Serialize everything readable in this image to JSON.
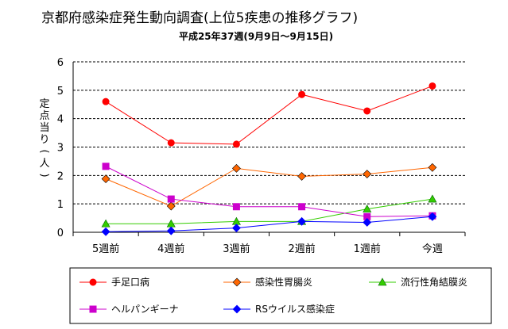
{
  "chart_data": {
    "type": "line",
    "title": "京都府感染症発生動向調査(上位5疾患の推移グラフ)",
    "subtitle": "平成25年37週(9月9日～9月15日)",
    "ylabel": "定点当り(人)",
    "xlabel": "",
    "ylim": [
      0,
      6
    ],
    "yticks": [
      "0",
      "1",
      "2",
      "3",
      "4",
      "5",
      "6"
    ],
    "grid": true,
    "legend_position": "bottom",
    "categories": [
      "5週前",
      "4週前",
      "3週前",
      "2週前",
      "1週前",
      "今週"
    ],
    "series": [
      {
        "name": "手足口病",
        "color": "#ff0000",
        "marker": "circle",
        "values": [
          4.6,
          3.15,
          3.1,
          4.85,
          4.27,
          5.15
        ]
      },
      {
        "name": "感染性胃腸炎",
        "color": "#ff6600",
        "marker": "diamond",
        "values": [
          1.88,
          0.92,
          2.25,
          1.97,
          2.05,
          2.28
        ]
      },
      {
        "name": "流行性角結膜炎",
        "color": "#33cc00",
        "marker": "triangle",
        "values": [
          0.3,
          0.3,
          0.38,
          0.38,
          0.82,
          1.17
        ]
      },
      {
        "name": "ヘルパンギーナ",
        "color": "#cc00cc",
        "marker": "square",
        "values": [
          2.32,
          1.17,
          0.9,
          0.9,
          0.55,
          0.58
        ]
      },
      {
        "name": "RSウイルス感染症",
        "color": "#0000ff",
        "marker": "diamond",
        "values": [
          0.02,
          0.05,
          0.15,
          0.38,
          0.35,
          0.55
        ]
      }
    ]
  }
}
